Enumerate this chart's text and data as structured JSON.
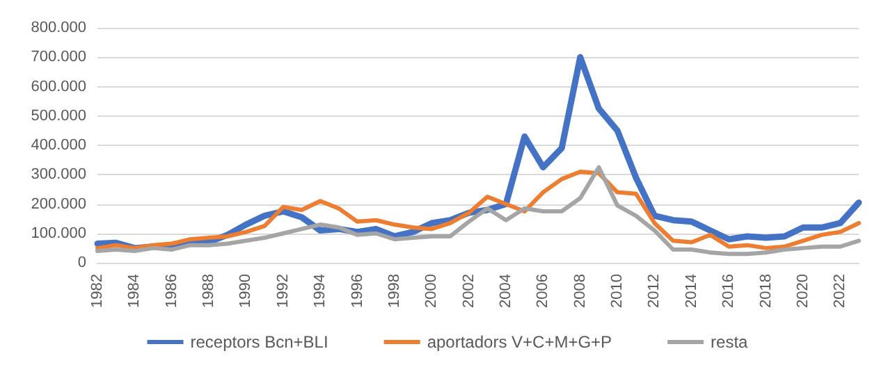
{
  "chart_data": {
    "type": "line",
    "categories": [
      "1982",
      null,
      "1984",
      null,
      "1986",
      null,
      "1988",
      null,
      "1990",
      null,
      "1992",
      null,
      "1994",
      null,
      "1996",
      null,
      "1998",
      null,
      "2000",
      null,
      "2002",
      null,
      "2004",
      null,
      "2006",
      null,
      "2008",
      null,
      "2010",
      null,
      "2012",
      null,
      "2014",
      null,
      "2016",
      null,
      "2018",
      null,
      "2020",
      null,
      "2022",
      null
    ],
    "series": [
      {
        "name": "receptors Bcn+BLI",
        "color": "#4472c4",
        "values": [
          65000,
          68000,
          50000,
          55000,
          60000,
          68000,
          70000,
          95000,
          130000,
          160000,
          175000,
          155000,
          110000,
          115000,
          105000,
          115000,
          90000,
          105000,
          135000,
          145000,
          170000,
          180000,
          200000,
          430000,
          325000,
          390000,
          700000,
          525000,
          450000,
          290000,
          160000,
          145000,
          140000,
          110000,
          80000,
          90000,
          85000,
          90000,
          120000,
          120000,
          135000,
          205000
        ]
      },
      {
        "name": "aportadors V+C+M+G+P",
        "color": "#ed7d31",
        "values": [
          50000,
          60000,
          50000,
          60000,
          65000,
          80000,
          85000,
          90000,
          105000,
          125000,
          190000,
          180000,
          210000,
          185000,
          140000,
          145000,
          130000,
          120000,
          115000,
          135000,
          170000,
          225000,
          200000,
          175000,
          240000,
          285000,
          310000,
          305000,
          240000,
          235000,
          135000,
          75000,
          70000,
          95000,
          55000,
          60000,
          50000,
          55000,
          75000,
          95000,
          105000,
          135000
        ]
      },
      {
        "name": "resta",
        "color": "#a5a5a5",
        "values": [
          40000,
          45000,
          40000,
          50000,
          45000,
          60000,
          60000,
          65000,
          75000,
          85000,
          100000,
          115000,
          130000,
          120000,
          95000,
          100000,
          80000,
          85000,
          90000,
          90000,
          140000,
          185000,
          145000,
          185000,
          175000,
          175000,
          220000,
          325000,
          195000,
          160000,
          110000,
          45000,
          45000,
          35000,
          30000,
          30000,
          35000,
          45000,
          50000,
          55000,
          55000,
          75000
        ]
      }
    ],
    "ylim": [
      0,
      800000
    ],
    "yticks": [
      {
        "value": 0,
        "label": "0"
      },
      {
        "value": 100000,
        "label": "100.000"
      },
      {
        "value": 200000,
        "label": "200.000"
      },
      {
        "value": 300000,
        "label": "300.000"
      },
      {
        "value": 400000,
        "label": "400.000"
      },
      {
        "value": 500000,
        "label": "500.000"
      },
      {
        "value": 600000,
        "label": "600.000"
      },
      {
        "value": 700000,
        "label": "700.000"
      },
      {
        "value": 800000,
        "label": "800.000"
      }
    ],
    "grid": "y",
    "legend": "bottom",
    "marker": "none",
    "line_style": "solid"
  }
}
